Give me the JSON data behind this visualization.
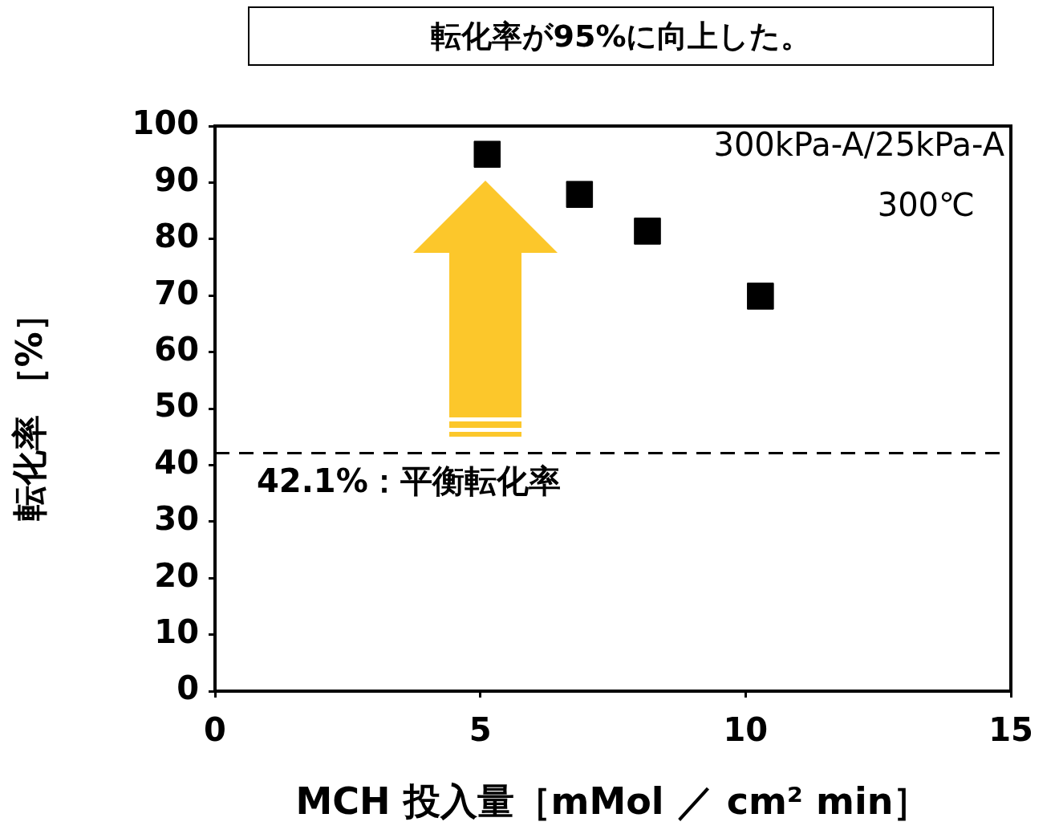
{
  "chart_data": {
    "type": "scatter",
    "title": "転化率が95%に向上した。",
    "xlabel": "MCH 投入量［mMol ／ cm² min］",
    "ylabel": "転化率 ［%］",
    "x": [
      5.13,
      6.87,
      8.15,
      10.28
    ],
    "series": [
      {
        "color": "#000000",
        "values": [
          95,
          87.9,
          81.4,
          69.9
        ]
      }
    ],
    "xlim": [
      0,
      15
    ],
    "xticks": [
      0,
      5,
      10,
      15
    ],
    "ylim": [
      0,
      100
    ],
    "yticks": [
      0,
      10,
      20,
      30,
      40,
      50,
      60,
      70,
      80,
      90,
      100
    ],
    "ref_lines": [
      {
        "axis": "y",
        "value": 42.1,
        "label": "42.1%：平衡転化率",
        "color": "#000000",
        "line_style": "dashed"
      }
    ],
    "annotations": [
      "300kPa-A/25kPa-A",
      "300℃"
    ],
    "marker": "square",
    "grid": false,
    "legend": false
  }
}
